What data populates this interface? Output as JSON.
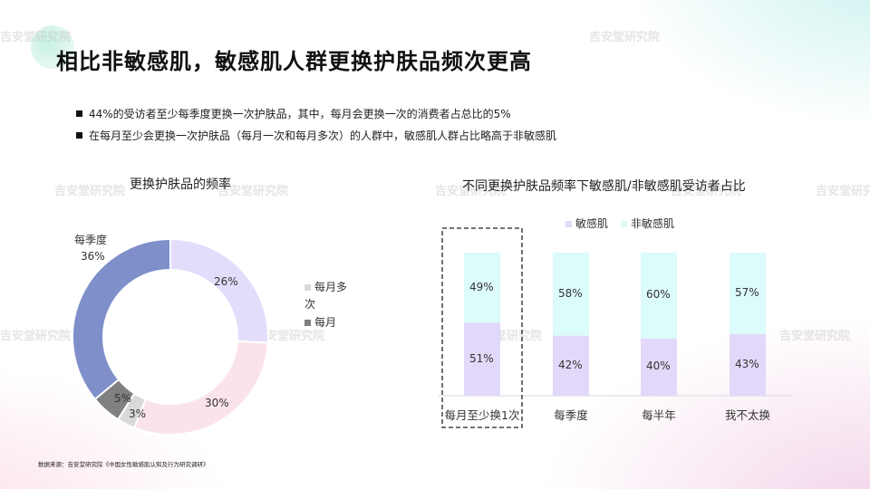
{
  "header": {
    "title": "相比非敏感肌，敏感肌人群更换护肤品频次更高",
    "watermark": "吉安堂研究院"
  },
  "bullets": [
    "44%的受访者至少每季度更换一次护肤品，其中，每月会更换一次的消费者占总比的5%",
    "在每月至少会更换一次护肤品（每月一次和每月多次）的人群中，敏感肌人群占比略高于非敏感肌"
  ],
  "source": "数据来源：吉安堂研究院《中国女性敏感肌认知及行为研究调研》",
  "chart_data": [
    {
      "type": "pie",
      "style": "donut",
      "title": "更换护肤品的频率",
      "slices": [
        {
          "label": "",
          "value": 26,
          "display": "26%",
          "color": "#e3dcfb"
        },
        {
          "label": "",
          "value": 30,
          "display": "30%",
          "color": "#fbe3ea"
        },
        {
          "label": "每月多次",
          "value": 3,
          "display": "3%",
          "color": "#d9d9d9"
        },
        {
          "label": "每月",
          "value": 5,
          "display": "5%",
          "color": "#808080"
        },
        {
          "label": "每季度",
          "value": 36,
          "display": "36%",
          "color": "#7f8fca"
        }
      ],
      "legend": [
        {
          "label": "每月多次",
          "color": "#d9d9d9"
        },
        {
          "label": "每月",
          "color": "#808080"
        }
      ],
      "legend_position": "right"
    },
    {
      "type": "bar",
      "stacked": true,
      "percent_stacked": true,
      "title": "不同更换护肤品频率下敏感肌/非敏感肌受访者占比",
      "categories": [
        "每月至少换1次",
        "每季度",
        "每半年",
        "我不太换"
      ],
      "series": [
        {
          "name": "敏感肌",
          "values": [
            51,
            42,
            40,
            43
          ],
          "labels": [
            "51%",
            "42%",
            "40%",
            "43%"
          ],
          "color": "#e2d8f9"
        },
        {
          "name": "非敏感肌",
          "values": [
            49,
            58,
            60,
            57
          ],
          "labels": [
            "49%",
            "58%",
            "60%",
            "57%"
          ],
          "color": "#dcfbfb"
        }
      ],
      "ylim": [
        0,
        100
      ],
      "highlight_category": "每月至少换1次",
      "legend_position": "top"
    }
  ]
}
